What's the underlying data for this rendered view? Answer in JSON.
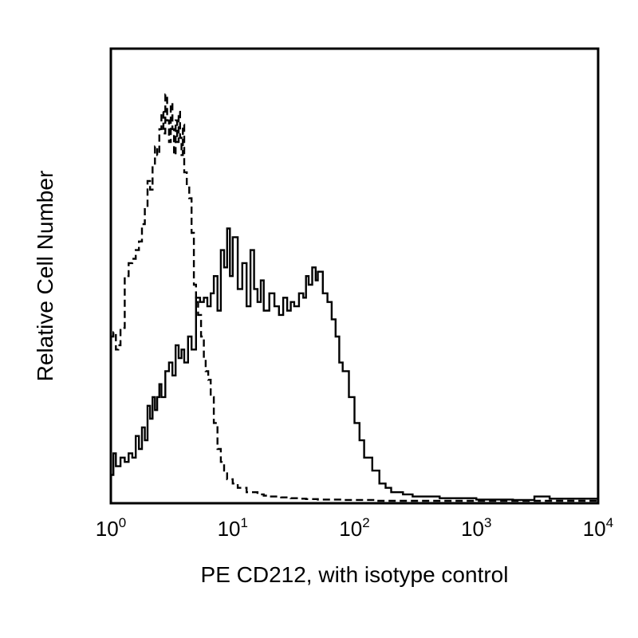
{
  "chart_data": {
    "type": "line",
    "title": "",
    "xlabel": "PE CD212, with isotype control",
    "ylabel": "Relative Cell Number",
    "x_scale": "log",
    "xlim": [
      1,
      10000
    ],
    "ylim": [
      0,
      100
    ],
    "grid": false,
    "legend": "none",
    "x_ticks": [
      {
        "value": 1,
        "base": "10",
        "exp": "0"
      },
      {
        "value": 10,
        "base": "10",
        "exp": "1"
      },
      {
        "value": 100,
        "base": "10",
        "exp": "2"
      },
      {
        "value": 1000,
        "base": "10",
        "exp": "3"
      },
      {
        "value": 10000,
        "base": "10",
        "exp": "4"
      }
    ],
    "series": [
      {
        "style": "dashed",
        "color": "#000000",
        "x": [
          1.0,
          1.05,
          1.1,
          1.15,
          1.2,
          1.3,
          1.4,
          1.5,
          1.6,
          1.7,
          1.8,
          1.9,
          2.0,
          2.1,
          2.2,
          2.3,
          2.4,
          2.5,
          2.6,
          2.7,
          2.8,
          2.9,
          3.0,
          3.1,
          3.2,
          3.3,
          3.4,
          3.5,
          3.6,
          3.7,
          3.8,
          3.9,
          4.0,
          4.2,
          4.4,
          4.6,
          4.8,
          5.0,
          5.2,
          5.5,
          5.8,
          6.0,
          6.3,
          6.6,
          7.0,
          7.5,
          8.0,
          8.5,
          9.0,
          10.0,
          11.0,
          12.0,
          13.0,
          14.0,
          16.0,
          18.0,
          20.0,
          25.0,
          30.0,
          35.0,
          40.0,
          50.0,
          60.0,
          80.0,
          100.0,
          150.0,
          200.0,
          300.0,
          1000.0,
          10000.0
        ],
        "y": [
          38,
          39,
          35,
          36,
          40,
          52,
          55,
          56,
          58,
          60,
          64,
          68,
          74,
          72,
          78,
          82,
          80,
          86,
          90,
          85,
          94,
          88,
          83,
          92,
          86,
          80,
          88,
          83,
          90,
          84,
          80,
          87,
          76,
          73,
          70,
          62,
          50,
          46,
          43,
          38,
          33,
          30,
          28,
          24,
          18,
          12,
          9,
          7,
          5,
          4,
          3,
          3,
          2,
          2,
          1.5,
          1.2,
          1,
          0.8,
          0.6,
          0.5,
          0.4,
          0.3,
          0.3,
          0.2,
          0.2,
          0,
          0,
          0,
          0,
          0
        ]
      },
      {
        "style": "solid",
        "color": "#000000",
        "x": [
          1.0,
          1.05,
          1.1,
          1.2,
          1.3,
          1.4,
          1.5,
          1.6,
          1.7,
          1.8,
          1.9,
          2.0,
          2.1,
          2.2,
          2.3,
          2.4,
          2.5,
          2.6,
          2.8,
          3.0,
          3.2,
          3.4,
          3.6,
          3.8,
          4.0,
          4.3,
          4.6,
          5.0,
          5.4,
          5.8,
          6.2,
          6.6,
          7.0,
          7.5,
          8.0,
          8.5,
          9.0,
          9.5,
          10.0,
          11.0,
          12.0,
          13.0,
          14.0,
          15.0,
          16.0,
          17.0,
          18.0,
          20.0,
          22.0,
          24.0,
          26.0,
          28.0,
          30.0,
          32.0,
          35.0,
          38.0,
          40.0,
          42.0,
          45.0,
          48.0,
          50.0,
          55.0,
          60.0,
          65.0,
          70.0,
          75.0,
          80.0,
          90.0,
          100.0,
          110.0,
          120.0,
          140.0,
          160.0,
          180.0,
          200.0,
          250.0,
          300.0,
          500.0,
          1000.0,
          2000.0,
          3000.0,
          4000.0,
          10000.0
        ],
        "y": [
          6,
          11,
          8,
          10,
          9,
          11,
          10,
          15,
          12,
          17,
          14,
          22,
          19,
          24,
          21,
          24,
          27,
          24,
          30,
          32,
          29,
          36,
          33,
          35,
          32,
          38,
          35,
          47,
          46,
          47,
          45,
          48,
          52,
          44,
          58,
          54,
          63,
          52,
          61,
          49,
          55,
          45,
          58,
          49,
          46,
          51,
          44,
          48,
          45,
          43,
          47,
          44,
          46,
          45,
          48,
          47,
          52,
          50,
          54,
          51,
          53,
          48,
          46,
          42,
          38,
          32,
          30,
          24,
          18,
          14,
          10,
          7,
          4,
          3,
          2,
          1.5,
          1,
          0.6,
          0.3,
          0.2,
          1,
          0.5,
          0
        ]
      }
    ]
  }
}
